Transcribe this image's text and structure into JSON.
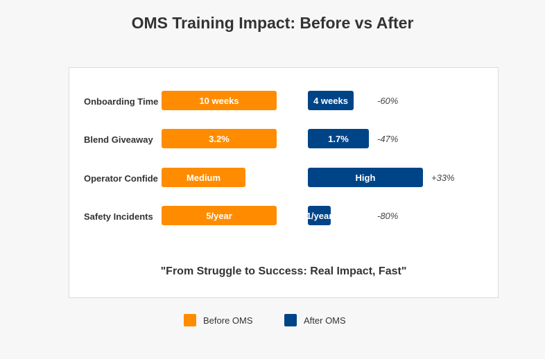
{
  "chart_data": {
    "type": "bar",
    "title": "OMS Training Impact: Before vs After",
    "subtitle": "\"From Struggle to Success: Real Impact, Fast\"",
    "categories": [
      "Onboarding Time",
      "Blend Giveaway",
      "Operator Confide",
      "Safety Incidents"
    ],
    "series": [
      {
        "name": "Before OMS",
        "color": "#ff8c00",
        "labels": [
          "10 weeks",
          "3.2%",
          "Medium",
          "5/year"
        ],
        "values": [
          10,
          3.2,
          2,
          5
        ],
        "scale_max": [
          10,
          3.2,
          2.75,
          5
        ]
      },
      {
        "name": "After OMS",
        "color": "#004488",
        "labels": [
          "4 weeks",
          "1.7%",
          "High",
          "1/year"
        ],
        "values": [
          4,
          1.7,
          3,
          1
        ],
        "scale_max": [
          10,
          3.2,
          3,
          5
        ]
      }
    ],
    "changes": [
      "-60%",
      "-47%",
      "+33%",
      "-80%"
    ],
    "legend": [
      "Before OMS",
      "After OMS"
    ],
    "legend_position": "bottom"
  }
}
